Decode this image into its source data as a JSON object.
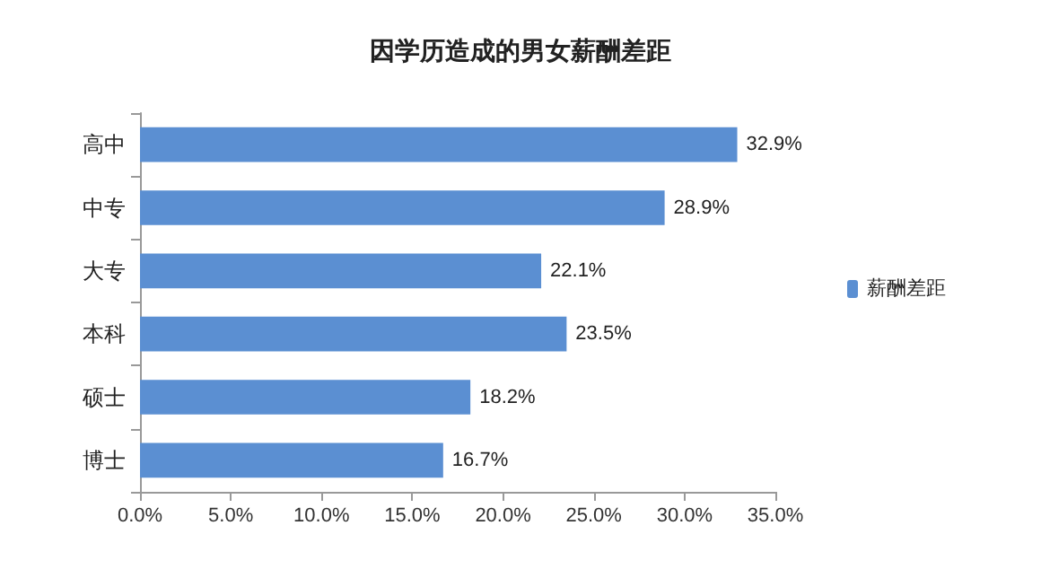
{
  "chart_data": {
    "type": "bar",
    "orientation": "horizontal",
    "title": "因学历造成的男女薪酬差距",
    "categories": [
      "高中",
      "中专",
      "大专",
      "本科",
      "硕士",
      "博士"
    ],
    "series": [
      {
        "name": "薪酬差距",
        "color": "#5b8fd2",
        "values": [
          32.9,
          28.9,
          22.1,
          23.5,
          18.2,
          16.7
        ],
        "value_labels": [
          "32.9%",
          "28.9%",
          "22.1%",
          "23.5%",
          "18.2%",
          "16.7%"
        ]
      }
    ],
    "xlim": [
      0,
      35
    ],
    "xticks": [
      {
        "value": 0,
        "label": "0.0%"
      },
      {
        "value": 5,
        "label": "5.0%"
      },
      {
        "value": 10,
        "label": "10.0%"
      },
      {
        "value": 15,
        "label": "15.0%"
      },
      {
        "value": 20,
        "label": "20.0%"
      },
      {
        "value": 25,
        "label": "25.0%"
      },
      {
        "value": 30,
        "label": "30.0%"
      },
      {
        "value": 35,
        "label": "35.0%"
      }
    ],
    "legend": "right",
    "grid": false
  }
}
